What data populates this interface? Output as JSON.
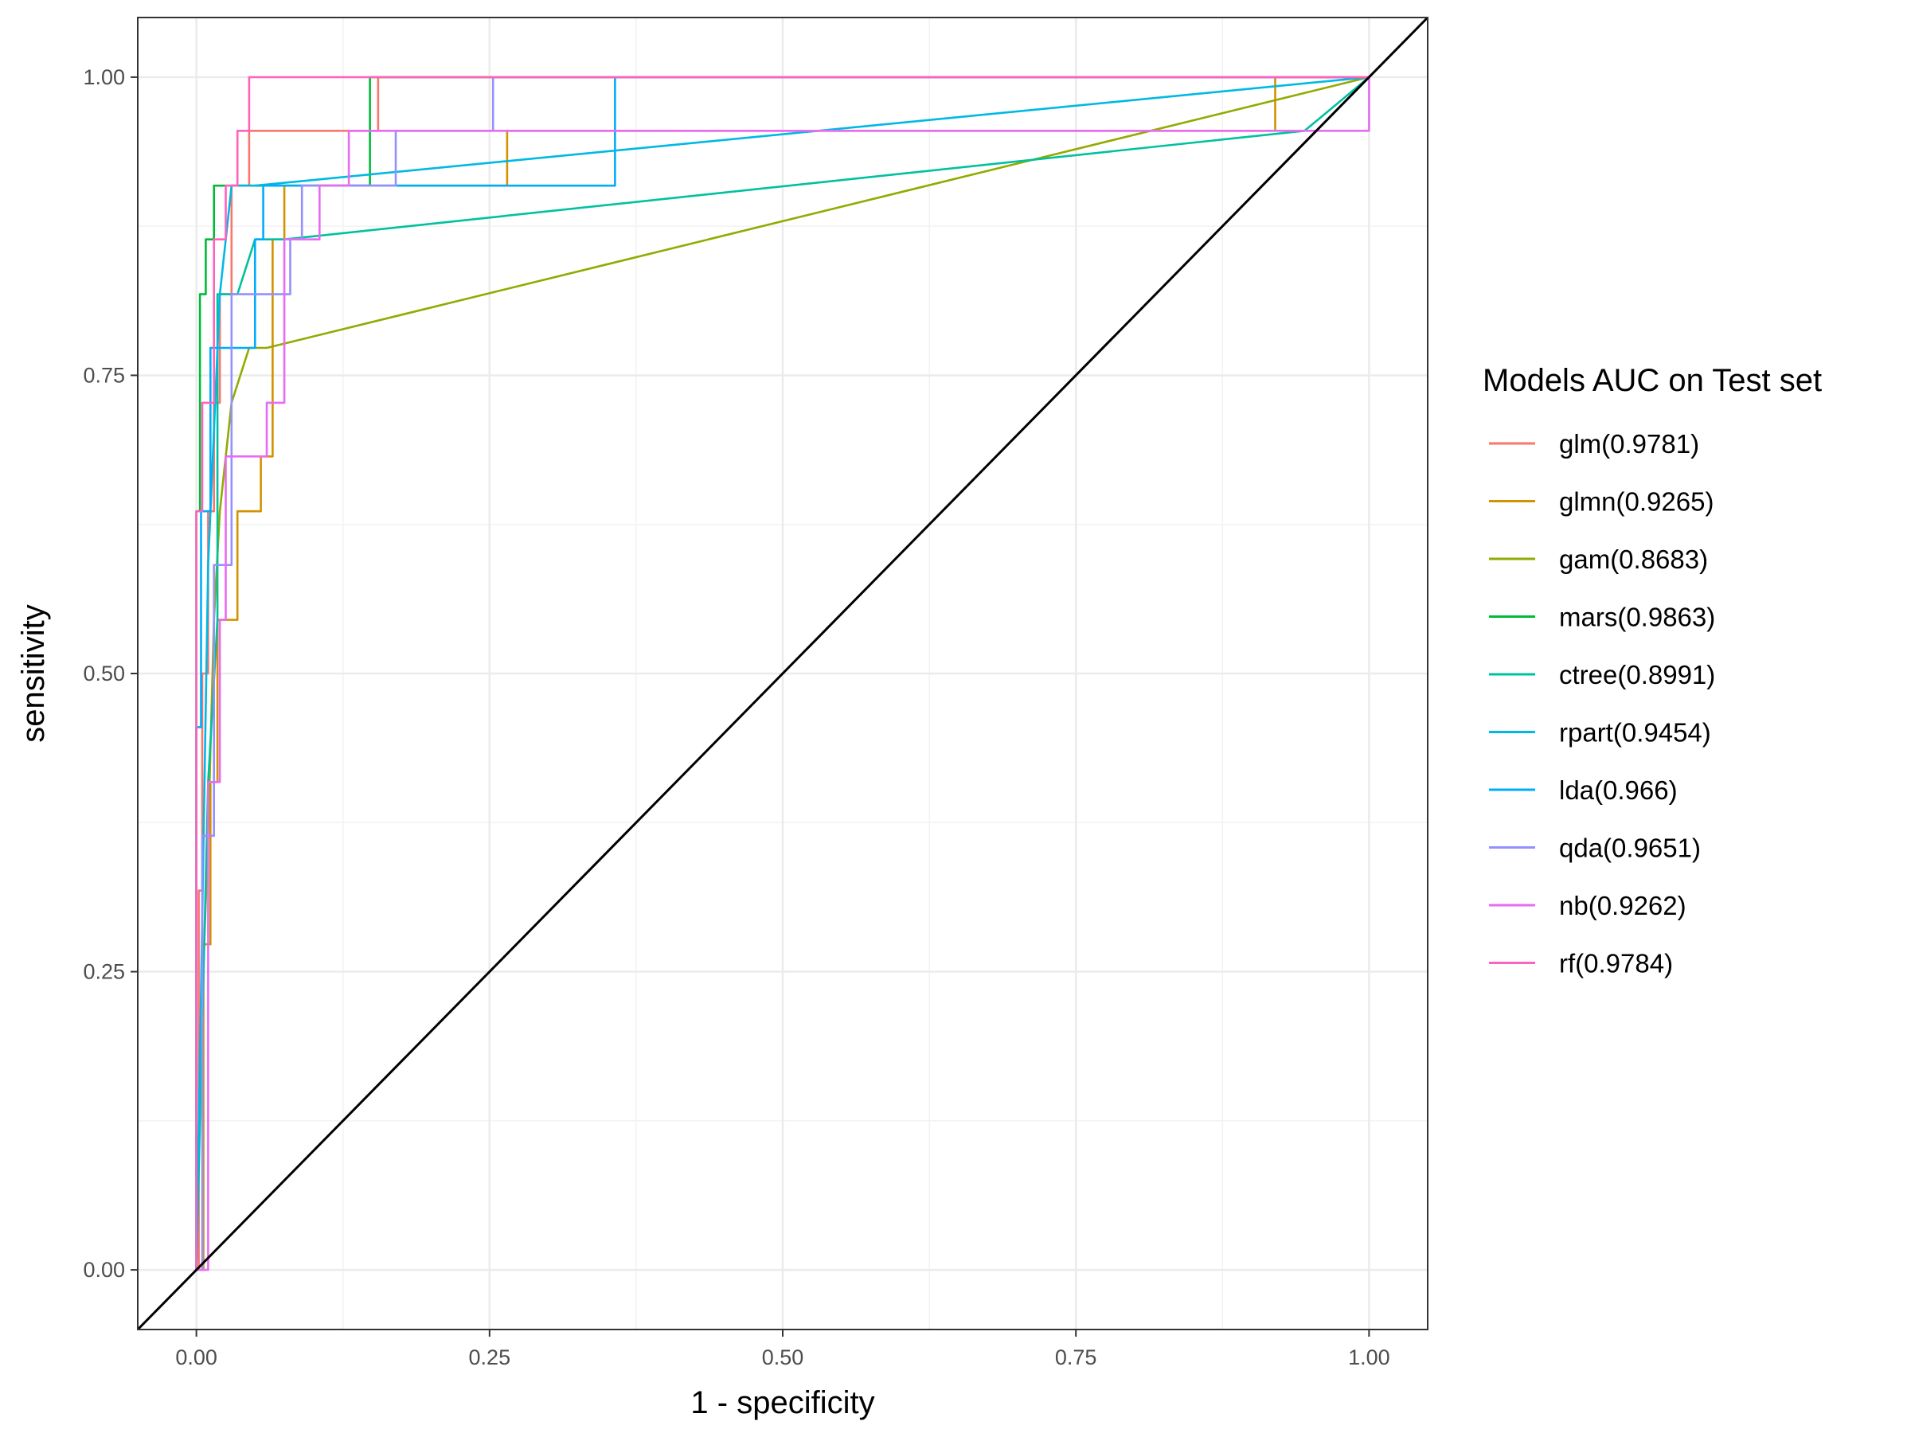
{
  "chart_data": {
    "type": "line",
    "xlabel": "1 - specificity",
    "ylabel": "sensitivity",
    "xlim": [
      -0.05,
      1.05
    ],
    "ylim": [
      -0.05,
      1.05
    ],
    "x_ticks": [
      0,
      0.25,
      0.5,
      0.75,
      1
    ],
    "y_ticks": [
      0,
      0.25,
      0.5,
      0.75,
      1
    ],
    "x_tick_labels": [
      "0.00",
      "0.25",
      "0.50",
      "0.75",
      "1.00"
    ],
    "y_tick_labels": [
      "0.00",
      "0.25",
      "0.50",
      "0.75",
      "1.00"
    ],
    "grid": true,
    "legend": {
      "title": "Models AUC on Test set",
      "position": "right"
    },
    "reference_line": {
      "x": [
        -0.05,
        1.05
      ],
      "y": [
        -0.05,
        1.05
      ],
      "color": "#000000"
    },
    "series": [
      {
        "name": "glm(0.9781)",
        "color": "#F8766D",
        "x": [
          0,
          0.002,
          0.002,
          0.005,
          0.005,
          0.01,
          0.01,
          0.015,
          0.015,
          0.02,
          0.02,
          0.03,
          0.03,
          0.045,
          0.045,
          0.105,
          0.105,
          0.155,
          0.155,
          1
        ],
        "y": [
          0,
          0,
          0.318,
          0.318,
          0.5,
          0.5,
          0.636,
          0.636,
          0.727,
          0.727,
          0.818,
          0.818,
          0.909,
          0.909,
          0.955,
          0.955,
          0.955,
          0.955,
          1,
          1
        ]
      },
      {
        "name": "glmn(0.9265)",
        "color": "#D39200",
        "x": [
          0,
          0.006,
          0.006,
          0.012,
          0.012,
          0.018,
          0.018,
          0.035,
          0.035,
          0.055,
          0.055,
          0.065,
          0.065,
          0.075,
          0.075,
          0.17,
          0.17,
          0.265,
          0.265,
          0.92,
          0.92,
          1
        ],
        "y": [
          0,
          0,
          0.273,
          0.273,
          0.409,
          0.409,
          0.545,
          0.545,
          0.636,
          0.636,
          0.682,
          0.682,
          0.864,
          0.864,
          0.909,
          0.909,
          0.909,
          0.909,
          0.955,
          0.955,
          1,
          1
        ]
      },
      {
        "name": "gam(0.8683)",
        "color": "#93AA00",
        "x": [
          0,
          0.005,
          0.01,
          0.015,
          0.02,
          0.03,
          0.045,
          0.06,
          1
        ],
        "y": [
          0,
          0.227,
          0.364,
          0.545,
          0.636,
          0.727,
          0.773,
          0.773,
          1
        ]
      },
      {
        "name": "mars(0.9863)",
        "color": "#00BA38",
        "x": [
          0,
          0,
          0.003,
          0.003,
          0.008,
          0.008,
          0.015,
          0.015,
          0.04,
          0.04,
          0.148,
          0.148,
          1
        ],
        "y": [
          0,
          0.636,
          0.636,
          0.818,
          0.818,
          0.864,
          0.864,
          0.909,
          0.909,
          0.909,
          0.909,
          1,
          1
        ]
      },
      {
        "name": "ctree(0.8991)",
        "color": "#00C19F",
        "x": [
          0,
          0.01,
          0.018,
          0.018,
          0.035,
          0.05,
          0.06,
          0.075,
          0.945,
          1
        ],
        "y": [
          0,
          0.409,
          0.545,
          0.818,
          0.818,
          0.864,
          0.864,
          0.864,
          0.955,
          1
        ]
      },
      {
        "name": "rpart(0.9454)",
        "color": "#00B9E3",
        "x": [
          0,
          0.01,
          0.02,
          0.03,
          0.05,
          1
        ],
        "y": [
          0,
          0.591,
          0.818,
          0.909,
          0.909,
          1
        ]
      },
      {
        "name": "lda(0.966)",
        "color": "#00ADFA",
        "x": [
          0,
          0,
          0.004,
          0.004,
          0.012,
          0.012,
          0.022,
          0.022,
          0.05,
          0.05,
          0.057,
          0.057,
          0.357,
          0.357,
          1
        ],
        "y": [
          0,
          0.455,
          0.455,
          0.636,
          0.636,
          0.773,
          0.773,
          0.773,
          0.773,
          0.864,
          0.864,
          0.909,
          0.909,
          1,
          1
        ]
      },
      {
        "name": "qda(0.9651)",
        "color": "#9590FF",
        "x": [
          0,
          0.005,
          0.005,
          0.015,
          0.015,
          0.03,
          0.03,
          0.08,
          0.08,
          0.09,
          0.09,
          0.17,
          0.17,
          0.253,
          0.253,
          1
        ],
        "y": [
          0,
          0,
          0.364,
          0.364,
          0.591,
          0.591,
          0.818,
          0.818,
          0.864,
          0.864,
          0.909,
          0.909,
          0.955,
          0.955,
          1,
          1
        ]
      },
      {
        "name": "nb(0.9262)",
        "color": "#E76BF3",
        "x": [
          0,
          0.01,
          0.01,
          0.02,
          0.02,
          0.025,
          0.025,
          0.06,
          0.06,
          0.075,
          0.075,
          0.105,
          0.105,
          0.13,
          0.13,
          0.375,
          0.375,
          1,
          1
        ],
        "y": [
          0,
          0,
          0.409,
          0.409,
          0.545,
          0.545,
          0.682,
          0.682,
          0.727,
          0.727,
          0.864,
          0.864,
          0.909,
          0.909,
          0.955,
          0.955,
          0.955,
          0.955,
          1
        ]
      },
      {
        "name": "rf(0.9784)",
        "color": "#FF62BC",
        "x": [
          0,
          0.0,
          0.005,
          0.005,
          0.015,
          0.015,
          0.025,
          0.025,
          0.035,
          0.035,
          0.045,
          0.045,
          0.375,
          0.375,
          1
        ],
        "y": [
          0,
          0.636,
          0.636,
          0.727,
          0.727,
          0.864,
          0.864,
          0.909,
          0.909,
          0.955,
          0.955,
          1,
          1,
          1,
          1
        ]
      }
    ]
  }
}
